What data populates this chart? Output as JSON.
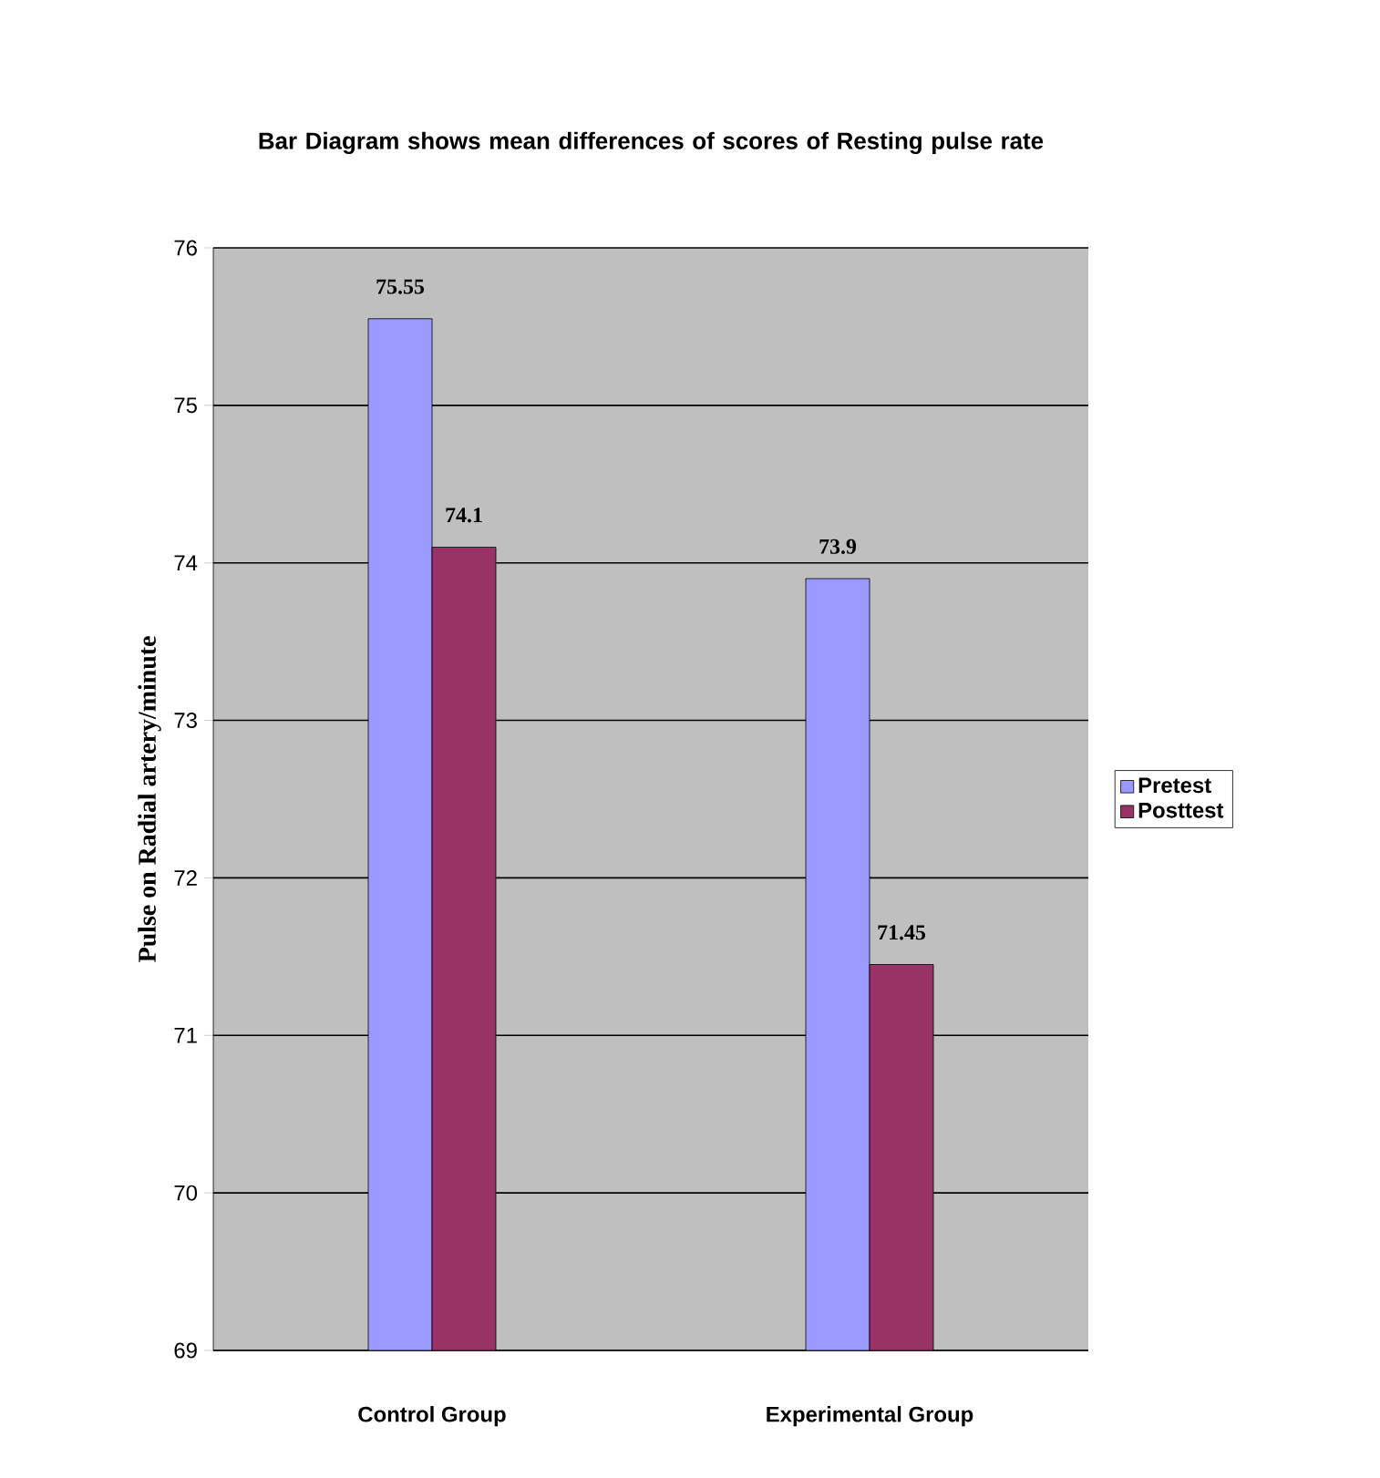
{
  "chart_data": {
    "type": "bar",
    "title": "Bar Diagram shows mean differences of scores of Resting pulse rate",
    "ylabel": "Pulse on Radial artery/minute",
    "categories": [
      "Control Group",
      "Experimental Group"
    ],
    "series": [
      {
        "name": "Pretest",
        "color": "#9999ff",
        "values": [
          75.55,
          73.9
        ]
      },
      {
        "name": "Posttest",
        "color": "#993366",
        "values": [
          74.1,
          71.45
        ]
      }
    ],
    "ylim": [
      69,
      76
    ],
    "yticks": [
      69,
      70,
      71,
      72,
      73,
      74,
      75,
      76
    ],
    "grid": "y",
    "legend": "right",
    "data_labels": true
  }
}
